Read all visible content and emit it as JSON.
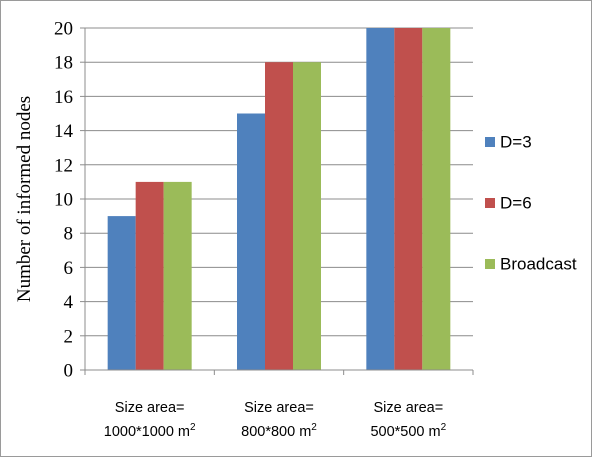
{
  "chart_data": {
    "type": "bar",
    "ylabel": "Number of informed nodes",
    "xlabel": "",
    "ylim": [
      0,
      20
    ],
    "y_ticks": [
      "0",
      "2",
      "4",
      "6",
      "8",
      "10",
      "12",
      "14",
      "16",
      "18",
      "20"
    ],
    "grid": true,
    "legend_position": "right",
    "categories": [
      {
        "line1": "Size area=",
        "line2": "1000*1000 m",
        "sup": "2"
      },
      {
        "line1": "Size area=",
        "line2": "800*800 m",
        "sup": "2"
      },
      {
        "line1": "Size area=",
        "line2": "500*500 m",
        "sup": "2"
      }
    ],
    "series": [
      {
        "name": "D=3",
        "color": "#4f81bd",
        "values": [
          9,
          15,
          20
        ]
      },
      {
        "name": "D=6",
        "color": "#c0504d",
        "values": [
          11,
          18,
          20
        ]
      },
      {
        "name": "Broadcast",
        "color": "#9bbb59",
        "values": [
          11,
          18,
          20
        ]
      }
    ]
  }
}
